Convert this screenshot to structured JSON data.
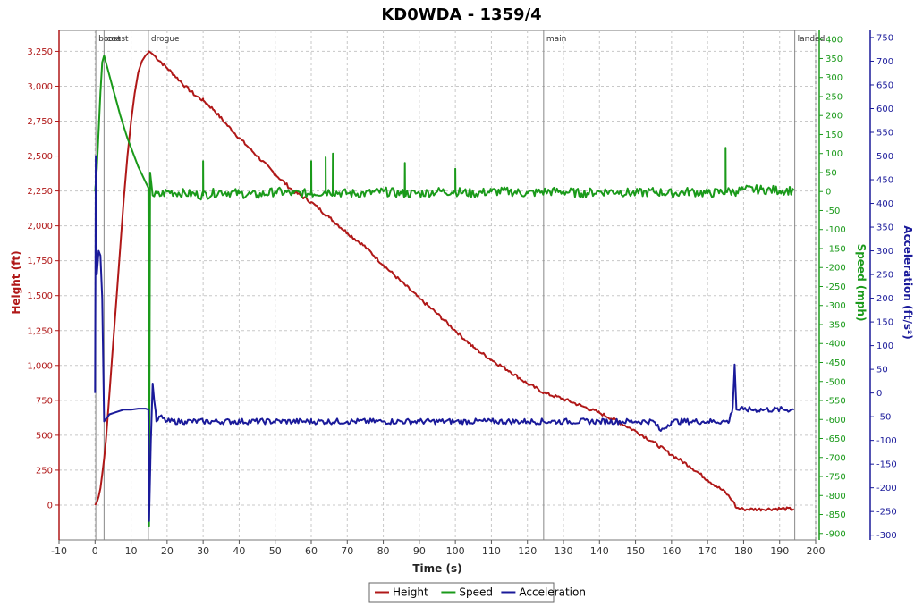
{
  "chart_data": {
    "type": "line",
    "title": "KD0WDA - 1359/4",
    "xlabel": "Time (s)",
    "xlim": [
      -10,
      200
    ],
    "x_ticks": [
      -10,
      0,
      10,
      20,
      30,
      40,
      50,
      60,
      70,
      80,
      90,
      100,
      110,
      120,
      130,
      140,
      150,
      160,
      170,
      180,
      190,
      200
    ],
    "axes": {
      "height": {
        "label": "Height (ft)",
        "range": [
          -250,
          3400
        ],
        "ticks": [
          0,
          250,
          500,
          750,
          1000,
          1250,
          1500,
          1750,
          2000,
          2250,
          2500,
          2750,
          3000,
          3250
        ],
        "color": "#b01818"
      },
      "speed": {
        "label": "Speed (mph)",
        "range": [
          -917,
          424
        ],
        "ticks": [
          400,
          350,
          300,
          250,
          200,
          150,
          100,
          50,
          0,
          -50,
          -100,
          -150,
          -200,
          -250,
          -300,
          -350,
          -400,
          -450,
          -500,
          -550,
          -600,
          -650,
          -700,
          -750,
          -800,
          -850,
          -900
        ],
        "color": "#1a9a1a"
      },
      "acceleration": {
        "label": "Acceleration (ft/s²)",
        "range": [
          -310,
          765
        ],
        "ticks": [
          750,
          700,
          650,
          600,
          550,
          500,
          450,
          400,
          350,
          300,
          250,
          200,
          150,
          100,
          50,
          0,
          -50,
          -100,
          -150,
          -200,
          -250,
          -300
        ],
        "color": "#1a1a9a"
      }
    },
    "events": [
      {
        "label": "boost",
        "t": 0.2
      },
      {
        "label": "coast",
        "t": 2.5
      },
      {
        "label": "drogue",
        "t": 14.8
      },
      {
        "label": "main",
        "t": 124.5
      },
      {
        "label": "landed",
        "t": 194.2
      }
    ],
    "series": [
      {
        "name": "Height",
        "axis": "height",
        "color": "#b01818",
        "points": [
          [
            0,
            0
          ],
          [
            0.5,
            20
          ],
          [
            1,
            60
          ],
          [
            1.5,
            120
          ],
          [
            2,
            220
          ],
          [
            2.5,
            330
          ],
          [
            3,
            460
          ],
          [
            4,
            800
          ],
          [
            5,
            1150
          ],
          [
            6,
            1500
          ],
          [
            7,
            1850
          ],
          [
            8,
            2200
          ],
          [
            9,
            2500
          ],
          [
            10,
            2750
          ],
          [
            11,
            2950
          ],
          [
            12,
            3100
          ],
          [
            13,
            3180
          ],
          [
            14,
            3220
          ],
          [
            14.8,
            3240
          ],
          [
            15,
            3250
          ],
          [
            16,
            3230
          ],
          [
            18,
            3180
          ],
          [
            20,
            3130
          ],
          [
            22,
            3080
          ],
          [
            25,
            3000
          ],
          [
            28,
            2930
          ],
          [
            30,
            2900
          ],
          [
            33,
            2830
          ],
          [
            36,
            2740
          ],
          [
            40,
            2630
          ],
          [
            45,
            2500
          ],
          [
            50,
            2370
          ],
          [
            55,
            2250
          ],
          [
            60,
            2170
          ],
          [
            65,
            2060
          ],
          [
            70,
            1950
          ],
          [
            75,
            1850
          ],
          [
            80,
            1720
          ],
          [
            85,
            1600
          ],
          [
            90,
            1480
          ],
          [
            95,
            1370
          ],
          [
            100,
            1250
          ],
          [
            105,
            1130
          ],
          [
            110,
            1040
          ],
          [
            115,
            960
          ],
          [
            120,
            870
          ],
          [
            125,
            800
          ],
          [
            130,
            760
          ],
          [
            135,
            710
          ],
          [
            140,
            660
          ],
          [
            145,
            600
          ],
          [
            150,
            530
          ],
          [
            155,
            450
          ],
          [
            160,
            360
          ],
          [
            165,
            280
          ],
          [
            170,
            180
          ],
          [
            175,
            90
          ],
          [
            177,
            30
          ],
          [
            178,
            -20
          ],
          [
            180,
            -30
          ],
          [
            185,
            -30
          ],
          [
            190,
            -25
          ],
          [
            194,
            -30
          ]
        ]
      },
      {
        "name": "Speed",
        "axis": "speed",
        "color": "#1a9a1a",
        "points": [
          [
            0,
            0
          ],
          [
            0.5,
            60
          ],
          [
            1,
            160
          ],
          [
            1.5,
            260
          ],
          [
            2,
            340
          ],
          [
            2.5,
            358
          ],
          [
            3,
            340
          ],
          [
            4,
            305
          ],
          [
            5,
            270
          ],
          [
            6,
            235
          ],
          [
            7,
            200
          ],
          [
            8,
            170
          ],
          [
            9,
            140
          ],
          [
            10,
            115
          ],
          [
            11,
            90
          ],
          [
            12,
            65
          ],
          [
            13,
            45
          ],
          [
            14,
            25
          ],
          [
            14.8,
            10
          ],
          [
            15,
            -880
          ],
          [
            15.3,
            50
          ],
          [
            16,
            -10
          ],
          [
            18,
            -10
          ],
          [
            20,
            0
          ],
          [
            25,
            -5
          ],
          [
            30,
            -10
          ],
          [
            35,
            0
          ],
          [
            40,
            -5
          ],
          [
            45,
            -10
          ],
          [
            50,
            0
          ],
          [
            55,
            -5
          ],
          [
            60,
            -5
          ],
          [
            65,
            0
          ],
          [
            70,
            -5
          ],
          [
            75,
            -5
          ],
          [
            80,
            0
          ],
          [
            85,
            -5
          ],
          [
            90,
            -5
          ],
          [
            95,
            0
          ],
          [
            100,
            0
          ],
          [
            105,
            -5
          ],
          [
            110,
            0
          ],
          [
            115,
            0
          ],
          [
            120,
            -5
          ],
          [
            125,
            0
          ],
          [
            130,
            0
          ],
          [
            135,
            -5
          ],
          [
            140,
            0
          ],
          [
            145,
            0
          ],
          [
            150,
            -5
          ],
          [
            155,
            0
          ],
          [
            160,
            -5
          ],
          [
            165,
            0
          ],
          [
            170,
            -5
          ],
          [
            175,
            0
          ],
          [
            178,
            0
          ],
          [
            180,
            5
          ],
          [
            185,
            5
          ],
          [
            190,
            3
          ],
          [
            194,
            3
          ]
        ],
        "spikes": [
          [
            30,
            80
          ],
          [
            60,
            80
          ],
          [
            64,
            90
          ],
          [
            66,
            100
          ],
          [
            86,
            75
          ],
          [
            100,
            60
          ],
          [
            175,
            115
          ]
        ]
      },
      {
        "name": "Acceleration",
        "axis": "acceleration",
        "color": "#1a1a9a",
        "points": [
          [
            0,
            0
          ],
          [
            0.2,
            500
          ],
          [
            0.5,
            250
          ],
          [
            1,
            300
          ],
          [
            1.5,
            290
          ],
          [
            2,
            200
          ],
          [
            2.5,
            -60
          ],
          [
            3,
            -55
          ],
          [
            4,
            -45
          ],
          [
            6,
            -40
          ],
          [
            8,
            -35
          ],
          [
            10,
            -35
          ],
          [
            12,
            -33
          ],
          [
            14,
            -33
          ],
          [
            14.8,
            -35
          ],
          [
            15,
            -270
          ],
          [
            15.5,
            -100
          ],
          [
            16,
            20
          ],
          [
            17,
            -60
          ],
          [
            18,
            -50
          ],
          [
            20,
            -60
          ],
          [
            25,
            -60
          ],
          [
            30,
            -60
          ],
          [
            40,
            -60
          ],
          [
            50,
            -60
          ],
          [
            60,
            -60
          ],
          [
            70,
            -60
          ],
          [
            80,
            -60
          ],
          [
            90,
            -60
          ],
          [
            100,
            -60
          ],
          [
            110,
            -60
          ],
          [
            120,
            -60
          ],
          [
            130,
            -60
          ],
          [
            140,
            -60
          ],
          [
            150,
            -60
          ],
          [
            155,
            -60
          ],
          [
            157,
            -80
          ],
          [
            160,
            -60
          ],
          [
            170,
            -60
          ],
          [
            175,
            -60
          ],
          [
            176,
            -60
          ],
          [
            177,
            -30
          ],
          [
            177.5,
            60
          ],
          [
            178,
            -35
          ],
          [
            180,
            -35
          ],
          [
            185,
            -35
          ],
          [
            190,
            -35
          ],
          [
            194,
            -35
          ]
        ]
      }
    ],
    "legend": {
      "position": "bottom-center",
      "entries": [
        "Height",
        "Speed",
        "Acceleration"
      ]
    },
    "grid": true
  }
}
